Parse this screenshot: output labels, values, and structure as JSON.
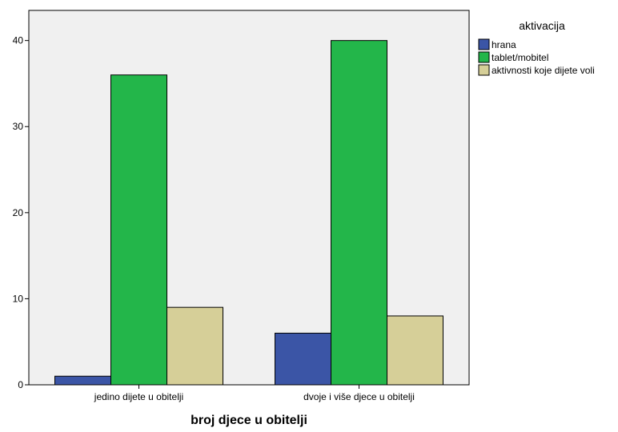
{
  "chart_data": {
    "type": "bar",
    "title": "",
    "xlabel": "broj djece u obitelji",
    "ylabel": "",
    "ylim": [
      0,
      43.5
    ],
    "yticks": [
      0,
      10,
      20,
      30,
      40
    ],
    "grid": false,
    "categories": [
      "jedino dijete u obitelji",
      "dvoje i više djece u obitelji"
    ],
    "legend_title": "aktivacija",
    "legend_position": "right",
    "series": [
      {
        "name": "hrana",
        "color": "#3b55a6",
        "values": [
          1,
          6
        ]
      },
      {
        "name": "tablet/mobitel",
        "color": "#23b64a",
        "values": [
          36,
          40
        ]
      },
      {
        "name": "aktivnosti koje dijete voli",
        "color": "#d6cf98",
        "values": [
          9,
          8
        ]
      }
    ],
    "plot_background": "#f0f0f0"
  }
}
